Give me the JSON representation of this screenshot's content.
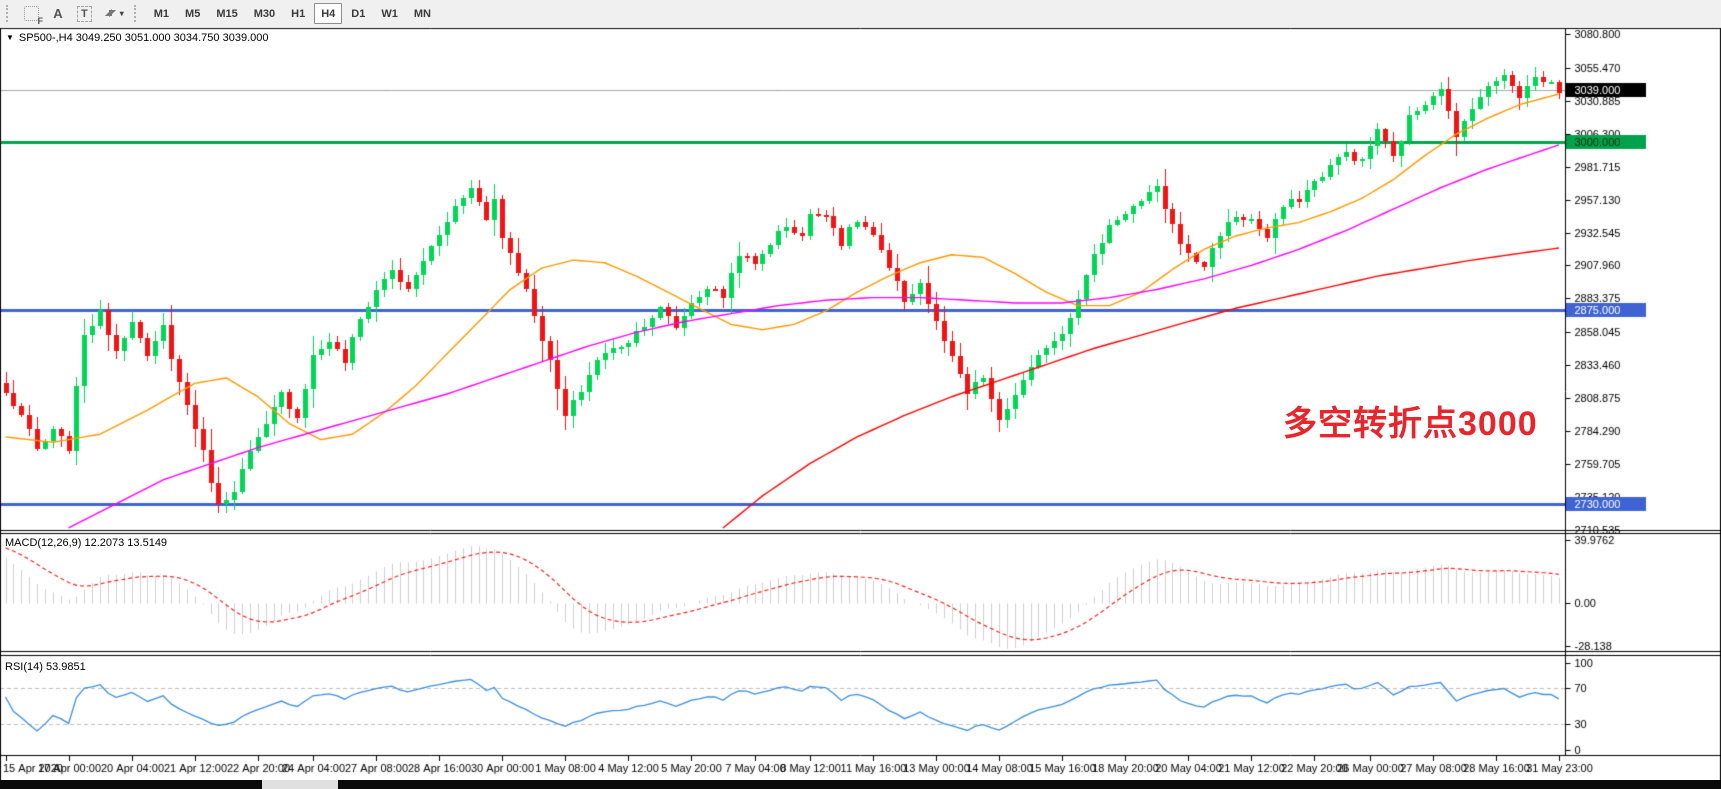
{
  "toolbar": {
    "tools": [
      {
        "name": "pointer-frame-tool",
        "glyph": "F"
      },
      {
        "name": "text-tool",
        "glyph": "A"
      },
      {
        "name": "text-label-tool",
        "glyph": "T"
      },
      {
        "name": "arrows-tool",
        "glyph": "",
        "dropdown_glyph": "▾"
      }
    ],
    "timeframes": [
      "M1",
      "M5",
      "M15",
      "M30",
      "H1",
      "H4",
      "D1",
      "W1",
      "MN"
    ],
    "active_timeframe": "H4"
  },
  "chart": {
    "collapse_glyph": "▼",
    "symbol": "SP500-",
    "period": "H4",
    "title": "SP500-,H4 3049.250 3051.000 3034.750 3039.000",
    "ohlc": {
      "open": "3049.250",
      "high": "3051.000",
      "low": "3034.750",
      "close": "3039.000"
    },
    "annotation": {
      "text": "多空转折点3000",
      "color": "#E8252B"
    },
    "macd_label": "MACD(12,26,9) 12.2073 13.5149",
    "rsi_label": "RSI(14) 53.9851"
  },
  "chart_data": [
    {
      "type": "candlestick",
      "title": "SP500-,H4",
      "bars": 198,
      "ylim": [
        2710.5,
        3084.5
      ],
      "up_color": "#00D755",
      "down_color": "#F21414",
      "close_keyframes": [
        [
          0,
          2812
        ],
        [
          2,
          2796
        ],
        [
          4,
          2770
        ],
        [
          6,
          2784
        ],
        [
          8,
          2772
        ],
        [
          10,
          2858
        ],
        [
          12,
          2872
        ],
        [
          14,
          2845
        ],
        [
          16,
          2868
        ],
        [
          18,
          2838
        ],
        [
          20,
          2862
        ],
        [
          22,
          2820
        ],
        [
          24,
          2788
        ],
        [
          26,
          2748
        ],
        [
          27,
          2728
        ],
        [
          29,
          2742
        ],
        [
          31,
          2768
        ],
        [
          33,
          2788
        ],
        [
          35,
          2812
        ],
        [
          37,
          2795
        ],
        [
          39,
          2840
        ],
        [
          41,
          2852
        ],
        [
          43,
          2836
        ],
        [
          45,
          2868
        ],
        [
          47,
          2890
        ],
        [
          49,
          2905
        ],
        [
          51,
          2888
        ],
        [
          53,
          2912
        ],
        [
          55,
          2930
        ],
        [
          57,
          2952
        ],
        [
          59,
          2968
        ],
        [
          61,
          2942
        ],
        [
          62,
          2958
        ],
        [
          63,
          2930
        ],
        [
          65,
          2905
        ],
        [
          67,
          2872
        ],
        [
          69,
          2835
        ],
        [
          71,
          2795
        ],
        [
          73,
          2815
        ],
        [
          75,
          2838
        ],
        [
          77,
          2845
        ],
        [
          79,
          2852
        ],
        [
          81,
          2865
        ],
        [
          83,
          2875
        ],
        [
          85,
          2862
        ],
        [
          87,
          2880
        ],
        [
          89,
          2892
        ],
        [
          91,
          2885
        ],
        [
          93,
          2918
        ],
        [
          95,
          2908
        ],
        [
          97,
          2925
        ],
        [
          99,
          2938
        ],
        [
          101,
          2930
        ],
        [
          102,
          2945
        ],
        [
          104,
          2948
        ],
        [
          106,
          2925
        ],
        [
          108,
          2942
        ],
        [
          110,
          2930
        ],
        [
          112,
          2905
        ],
        [
          114,
          2882
        ],
        [
          116,
          2895
        ],
        [
          118,
          2865
        ],
        [
          120,
          2838
        ],
        [
          122,
          2812
        ],
        [
          124,
          2825
        ],
        [
          126,
          2790
        ],
        [
          128,
          2812
        ],
        [
          130,
          2830
        ],
        [
          132,
          2848
        ],
        [
          134,
          2858
        ],
        [
          136,
          2885
        ],
        [
          138,
          2915
        ],
        [
          140,
          2938
        ],
        [
          142,
          2948
        ],
        [
          144,
          2955
        ],
        [
          146,
          2965
        ],
        [
          148,
          2938
        ],
        [
          150,
          2915
        ],
        [
          152,
          2908
        ],
        [
          154,
          2932
        ],
        [
          156,
          2945
        ],
        [
          158,
          2942
        ],
        [
          160,
          2928
        ],
        [
          162,
          2952
        ],
        [
          164,
          2958
        ],
        [
          166,
          2970
        ],
        [
          168,
          2982
        ],
        [
          170,
          2992
        ],
        [
          172,
          2985
        ],
        [
          174,
          3010
        ],
        [
          176,
          2988
        ],
        [
          178,
          3018
        ],
        [
          180,
          3030
        ],
        [
          182,
          3042
        ],
        [
          184,
          3002
        ],
        [
          186,
          3028
        ],
        [
          188,
          3040
        ],
        [
          190,
          3052
        ],
        [
          192,
          3035
        ],
        [
          194,
          3048
        ],
        [
          196,
          3044
        ],
        [
          197,
          3039
        ]
      ],
      "moving_averages": [
        {
          "name": "ma-fast",
          "color": "#FF9900",
          "points": [
            [
              0,
              2780
            ],
            [
              6,
              2776
            ],
            [
              12,
              2782
            ],
            [
              18,
              2800
            ],
            [
              24,
              2820
            ],
            [
              28,
              2824
            ],
            [
              32,
              2810
            ],
            [
              36,
              2790
            ],
            [
              40,
              2778
            ],
            [
              44,
              2782
            ],
            [
              48,
              2798
            ],
            [
              52,
              2818
            ],
            [
              56,
              2842
            ],
            [
              60,
              2866
            ],
            [
              64,
              2890
            ],
            [
              68,
              2906
            ],
            [
              72,
              2912
            ],
            [
              76,
              2910
            ],
            [
              80,
              2900
            ],
            [
              84,
              2888
            ],
            [
              88,
              2876
            ],
            [
              92,
              2864
            ],
            [
              96,
              2860
            ],
            [
              100,
              2864
            ],
            [
              104,
              2874
            ],
            [
              108,
              2888
            ],
            [
              112,
              2900
            ],
            [
              116,
              2910
            ],
            [
              120,
              2916
            ],
            [
              124,
              2914
            ],
            [
              128,
              2902
            ],
            [
              132,
              2888
            ],
            [
              136,
              2878
            ],
            [
              140,
              2878
            ],
            [
              144,
              2888
            ],
            [
              148,
              2905
            ],
            [
              152,
              2920
            ],
            [
              156,
              2930
            ],
            [
              160,
              2936
            ],
            [
              164,
              2940
            ],
            [
              168,
              2948
            ],
            [
              172,
              2958
            ],
            [
              176,
              2972
            ],
            [
              180,
              2990
            ],
            [
              184,
              3006
            ],
            [
              188,
              3018
            ],
            [
              192,
              3028
            ],
            [
              197,
              3036
            ]
          ]
        },
        {
          "name": "ma-medium",
          "color": "#FF00FF",
          "points": [
            [
              8,
              2712
            ],
            [
              14,
              2730
            ],
            [
              20,
              2748
            ],
            [
              26,
              2760
            ],
            [
              32,
              2772
            ],
            [
              38,
              2782
            ],
            [
              44,
              2792
            ],
            [
              50,
              2802
            ],
            [
              56,
              2812
            ],
            [
              62,
              2824
            ],
            [
              68,
              2836
            ],
            [
              74,
              2848
            ],
            [
              80,
              2858
            ],
            [
              86,
              2866
            ],
            [
              92,
              2872
            ],
            [
              98,
              2878
            ],
            [
              104,
              2882
            ],
            [
              110,
              2884
            ],
            [
              116,
              2884
            ],
            [
              122,
              2882
            ],
            [
              128,
              2880
            ],
            [
              134,
              2880
            ],
            [
              140,
              2884
            ],
            [
              146,
              2890
            ],
            [
              152,
              2898
            ],
            [
              158,
              2908
            ],
            [
              164,
              2920
            ],
            [
              170,
              2934
            ],
            [
              176,
              2950
            ],
            [
              182,
              2966
            ],
            [
              188,
              2980
            ],
            [
              193,
              2990
            ],
            [
              197,
              2998
            ]
          ]
        },
        {
          "name": "ma-slow",
          "color": "#FF0000",
          "points": [
            [
              91,
              2712
            ],
            [
              96,
              2736
            ],
            [
              102,
              2760
            ],
            [
              108,
              2780
            ],
            [
              114,
              2796
            ],
            [
              120,
              2810
            ],
            [
              126,
              2822
            ],
            [
              132,
              2834
            ],
            [
              138,
              2846
            ],
            [
              144,
              2856
            ],
            [
              150,
              2866
            ],
            [
              156,
              2876
            ],
            [
              162,
              2884
            ],
            [
              168,
              2892
            ],
            [
              174,
              2900
            ],
            [
              180,
              2906
            ],
            [
              186,
              2912
            ],
            [
              192,
              2917
            ],
            [
              197,
              2921
            ]
          ]
        }
      ],
      "hlines": [
        {
          "price": 3039.0,
          "label": "3039.000",
          "line_color": "#A7A7A7",
          "line_width": 1,
          "badge_bg": "#000000",
          "badge_fg": "#FFFFFF",
          "style": "current-price"
        },
        {
          "price": 3000.0,
          "label": "3000.000",
          "line_color": "#00A24E",
          "line_width": 3,
          "badge_bg": "#00A24E",
          "badge_fg": "#103000",
          "style": "support"
        },
        {
          "price": 2875.0,
          "label": "2875.000",
          "line_color": "#3F63D2",
          "line_width": 3,
          "badge_bg": "#3F63D2",
          "badge_fg": "#FFFFFF",
          "style": "support"
        },
        {
          "price": 2730.0,
          "label": "2730.000",
          "line_color": "#3F63D2",
          "line_width": 3,
          "badge_bg": "#3F63D2",
          "badge_fg": "#FFFFFF",
          "style": "support"
        }
      ],
      "y_ticks": [
        "3080.800",
        "3055.470",
        "3030.885",
        "3006.300",
        "2981.715",
        "2957.130",
        "2932.545",
        "2907.960",
        "2883.375",
        "2858.045",
        "2833.460",
        "2808.875",
        "2784.290",
        "2759.705",
        "2735.120",
        "2710.535"
      ],
      "x_labels": [
        {
          "t": "15 Apr 2020",
          "bar": 0
        },
        {
          "t": "17 Apr 00:00",
          "bar": 8
        },
        {
          "t": "20 Apr 04:00",
          "bar": 16
        },
        {
          "t": "21 Apr 12:00",
          "bar": 24
        },
        {
          "t": "22 Apr 20:00",
          "bar": 32
        },
        {
          "t": "24 Apr 04:00",
          "bar": 39
        },
        {
          "t": "27 Apr 08:00",
          "bar": 47
        },
        {
          "t": "28 Apr 16:00",
          "bar": 55
        },
        {
          "t": "30 Apr 00:00",
          "bar": 63
        },
        {
          "t": "1 May 08:00",
          "bar": 71
        },
        {
          "t": "4 May 12:00",
          "bar": 79
        },
        {
          "t": "5 May 20:00",
          "bar": 87
        },
        {
          "t": "7 May 04:00",
          "bar": 95
        },
        {
          "t": "8 May 12:00",
          "bar": 102
        },
        {
          "t": "11 May 16:00",
          "bar": 110
        },
        {
          "t": "13 May 00:00",
          "bar": 118
        },
        {
          "t": "14 May 08:00",
          "bar": 126
        },
        {
          "t": "15 May 16:00",
          "bar": 134
        },
        {
          "t": "18 May 20:00",
          "bar": 142
        },
        {
          "t": "20 May 04:00",
          "bar": 150
        },
        {
          "t": "21 May 12:00",
          "bar": 158
        },
        {
          "t": "22 May 20:00",
          "bar": 166
        },
        {
          "t": "26 May 00:00",
          "bar": 173
        },
        {
          "t": "27 May 08:00",
          "bar": 181
        },
        {
          "t": "28 May 16:00",
          "bar": 189
        },
        {
          "t": "31 May 23:00",
          "bar": 197
        }
      ]
    },
    {
      "type": "macd",
      "label": "MACD(12,26,9)",
      "params": [
        12,
        26,
        9
      ],
      "current_values": {
        "macd": 12.2073,
        "signal": 13.5149
      },
      "ylim": [
        -28.138,
        39.9762
      ],
      "y_ticks": [
        "39.9762",
        "0.00",
        "-28.138"
      ],
      "histogram_color": "#CFCFCF",
      "signal_color": "#FF2222"
    },
    {
      "type": "rsi",
      "label": "RSI(14)",
      "period": 14,
      "current_value": 53.9851,
      "ylim": [
        0,
        100
      ],
      "levels": [
        70,
        30
      ],
      "y_ticks": [
        "100",
        "70",
        "30",
        "0"
      ],
      "line_color": "#3E8EDE",
      "level_color": "#BFBFBF"
    }
  ]
}
